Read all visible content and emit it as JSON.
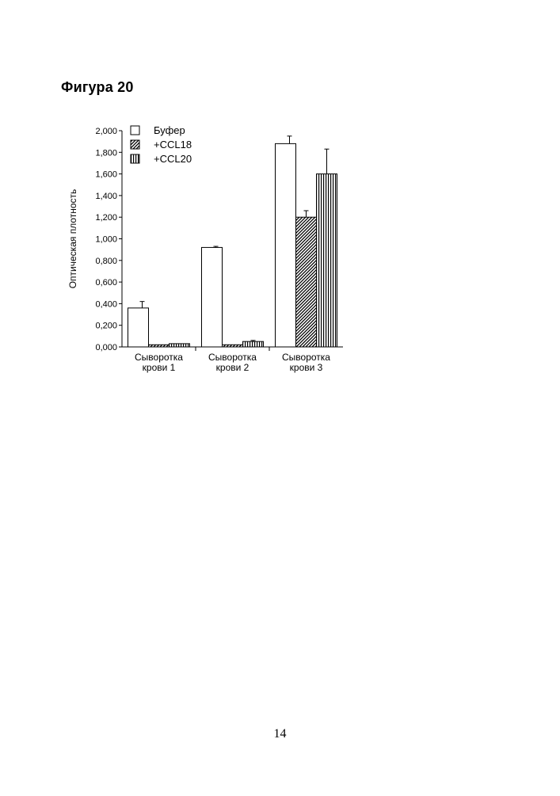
{
  "figure_heading": "Фигура 20",
  "page_number": "14",
  "chart_data": {
    "type": "bar",
    "title": "",
    "xlabel": "",
    "ylabel": "Оптическая плотность",
    "ylim": [
      0,
      2.0
    ],
    "yticks": [
      "0,000",
      "0,200",
      "0,400",
      "0,600",
      "0,800",
      "1,000",
      "1,200",
      "1,400",
      "1,600",
      "1,800",
      "2,000"
    ],
    "categories": [
      [
        "Сыворотка",
        "крови 1"
      ],
      [
        "Сыворотка",
        "крови 2"
      ],
      [
        "Сыворотка",
        "крови 3"
      ]
    ],
    "legend_position": "top-left",
    "series": [
      {
        "name": "Буфер",
        "pattern": "none",
        "values": [
          0.36,
          0.92,
          1.88
        ],
        "errors": [
          0.06,
          0.01,
          0.07
        ]
      },
      {
        "name": "+CCL18",
        "pattern": "diagonal-hatch",
        "values": [
          0.02,
          0.02,
          1.2
        ],
        "errors": [
          0.0,
          0.0,
          0.06
        ]
      },
      {
        "name": "+CCL20",
        "pattern": "vertical-stripes",
        "values": [
          0.03,
          0.05,
          1.6
        ],
        "errors": [
          0.0,
          0.01,
          0.23
        ]
      }
    ]
  }
}
